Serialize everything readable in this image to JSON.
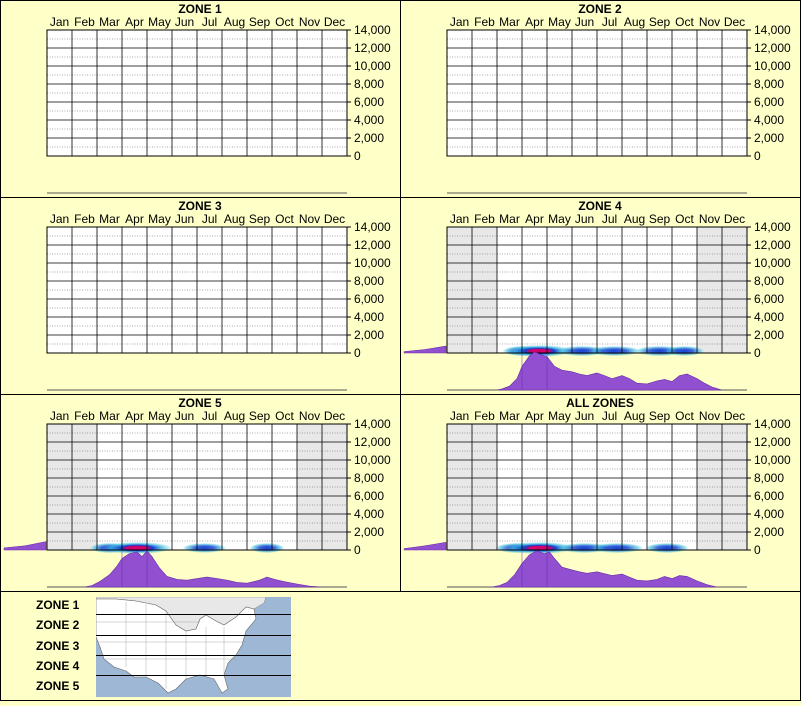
{
  "chart_data": {
    "type": "heatmap",
    "months": [
      "Jan",
      "Feb",
      "Mar",
      "Apr",
      "May",
      "Jun",
      "Jul",
      "Aug",
      "Sep",
      "Oct",
      "Nov",
      "Dec"
    ],
    "y_ticks": [
      "14,000",
      "12,000",
      "10,000",
      "8,000",
      "6,000",
      "4,000",
      "2,000",
      "0"
    ],
    "ylim": [
      0,
      14000
    ],
    "colors": {
      "background": "#ffffc8",
      "shade": "#e8e8e8",
      "profile": "#9050d0",
      "heat_core": "#d0006a",
      "heat_mid": "#1040d0",
      "heat_edge": "#40c0e0"
    },
    "panels": [
      {
        "title": "ZONE 1",
        "inactive_months": [],
        "has_data": false,
        "heat": [],
        "seasonal": [],
        "left_profile": []
      },
      {
        "title": "ZONE 2",
        "inactive_months": [],
        "has_data": false,
        "heat": [],
        "seasonal": [],
        "left_profile": []
      },
      {
        "title": "ZONE 3",
        "inactive_months": [],
        "has_data": false,
        "heat": [],
        "seasonal": [],
        "left_profile": []
      },
      {
        "title": "ZONE 4",
        "inactive_months": [
          "Jan",
          "Feb",
          "Nov",
          "Dec"
        ],
        "has_data": true,
        "heat": [
          {
            "month": 3.0,
            "width": 0.6,
            "strength": 0.5
          },
          {
            "month": 3.7,
            "width": 1.2,
            "strength": 1.0
          },
          {
            "month": 5.4,
            "width": 0.8,
            "strength": 0.55
          },
          {
            "month": 6.7,
            "width": 0.9,
            "strength": 0.5
          },
          {
            "month": 8.5,
            "width": 0.8,
            "strength": 0.55
          },
          {
            "month": 9.5,
            "width": 0.6,
            "strength": 0.5
          }
        ],
        "seasonal": [
          [
            2.0,
            0
          ],
          [
            2.2,
            3
          ],
          [
            2.5,
            10
          ],
          [
            2.8,
            30
          ],
          [
            3.0,
            62
          ],
          [
            3.3,
            90
          ],
          [
            3.5,
            100
          ],
          [
            3.8,
            92
          ],
          [
            4.0,
            88
          ],
          [
            4.3,
            62
          ],
          [
            4.6,
            52
          ],
          [
            5.0,
            48
          ],
          [
            5.3,
            42
          ],
          [
            5.6,
            38
          ],
          [
            6.0,
            45
          ],
          [
            6.3,
            38
          ],
          [
            6.6,
            30
          ],
          [
            7.0,
            38
          ],
          [
            7.3,
            30
          ],
          [
            7.6,
            18
          ],
          [
            8.0,
            16
          ],
          [
            8.4,
            24
          ],
          [
            8.7,
            28
          ],
          [
            9.0,
            22
          ],
          [
            9.3,
            38
          ],
          [
            9.6,
            42
          ],
          [
            10.0,
            30
          ],
          [
            10.3,
            18
          ],
          [
            10.6,
            8
          ],
          [
            11.0,
            0
          ]
        ],
        "left_profile": [
          [
            0,
            0.1
          ],
          [
            0.5,
            0.25
          ],
          [
            1,
            0.5
          ]
        ]
      },
      {
        "title": "ZONE 5",
        "inactive_months": [
          "Jan",
          "Feb",
          "Nov",
          "Dec"
        ],
        "has_data": true,
        "heat": [
          {
            "month": 2.5,
            "width": 0.6,
            "strength": 0.55
          },
          {
            "month": 3.6,
            "width": 1.3,
            "strength": 1.0
          },
          {
            "month": 6.3,
            "width": 0.7,
            "strength": 0.45
          },
          {
            "month": 8.8,
            "width": 0.5,
            "strength": 0.5
          }
        ],
        "seasonal": [
          [
            1.5,
            0
          ],
          [
            1.8,
            4
          ],
          [
            2.1,
            14
          ],
          [
            2.5,
            32
          ],
          [
            2.8,
            55
          ],
          [
            3.0,
            75
          ],
          [
            3.3,
            88
          ],
          [
            3.6,
            92
          ],
          [
            3.8,
            80
          ],
          [
            4.0,
            95
          ],
          [
            4.2,
            80
          ],
          [
            4.5,
            50
          ],
          [
            4.8,
            28
          ],
          [
            5.2,
            20
          ],
          [
            5.6,
            18
          ],
          [
            6.0,
            22
          ],
          [
            6.4,
            26
          ],
          [
            6.8,
            22
          ],
          [
            7.2,
            18
          ],
          [
            7.6,
            12
          ],
          [
            8.0,
            10
          ],
          [
            8.5,
            18
          ],
          [
            8.8,
            26
          ],
          [
            9.1,
            20
          ],
          [
            9.5,
            14
          ],
          [
            10.0,
            8
          ],
          [
            10.5,
            2
          ],
          [
            11.0,
            0
          ]
        ],
        "left_profile": [
          [
            0,
            0.15
          ],
          [
            0.5,
            0.3
          ],
          [
            1,
            0.6
          ]
        ]
      },
      {
        "title": "ALL ZONES",
        "inactive_months": [
          "Jan",
          "Feb",
          "Nov",
          "Dec"
        ],
        "has_data": true,
        "heat": [
          {
            "month": 2.8,
            "width": 0.7,
            "strength": 0.55
          },
          {
            "month": 3.7,
            "width": 1.3,
            "strength": 1.0
          },
          {
            "month": 5.5,
            "width": 0.9,
            "strength": 0.5
          },
          {
            "month": 6.8,
            "width": 0.9,
            "strength": 0.5
          },
          {
            "month": 8.8,
            "width": 0.7,
            "strength": 0.5
          }
        ],
        "seasonal": [
          [
            1.8,
            0
          ],
          [
            2.1,
            4
          ],
          [
            2.4,
            12
          ],
          [
            2.7,
            32
          ],
          [
            3.0,
            62
          ],
          [
            3.3,
            85
          ],
          [
            3.6,
            95
          ],
          [
            3.9,
            88
          ],
          [
            4.1,
            92
          ],
          [
            4.3,
            75
          ],
          [
            4.6,
            52
          ],
          [
            5.0,
            45
          ],
          [
            5.3,
            40
          ],
          [
            5.6,
            36
          ],
          [
            6.0,
            40
          ],
          [
            6.3,
            35
          ],
          [
            6.6,
            30
          ],
          [
            7.0,
            34
          ],
          [
            7.3,
            26
          ],
          [
            7.6,
            18
          ],
          [
            8.0,
            16
          ],
          [
            8.4,
            20
          ],
          [
            8.7,
            28
          ],
          [
            9.0,
            22
          ],
          [
            9.3,
            30
          ],
          [
            9.6,
            28
          ],
          [
            10.0,
            16
          ],
          [
            10.4,
            6
          ],
          [
            10.8,
            0
          ]
        ],
        "left_profile": [
          [
            0,
            0.1
          ],
          [
            0.5,
            0.3
          ],
          [
            1,
            0.55
          ]
        ]
      }
    ]
  },
  "legend": {
    "zones": [
      "ZONE 1",
      "ZONE 2",
      "ZONE 3",
      "ZONE 4",
      "ZONE 5"
    ]
  }
}
